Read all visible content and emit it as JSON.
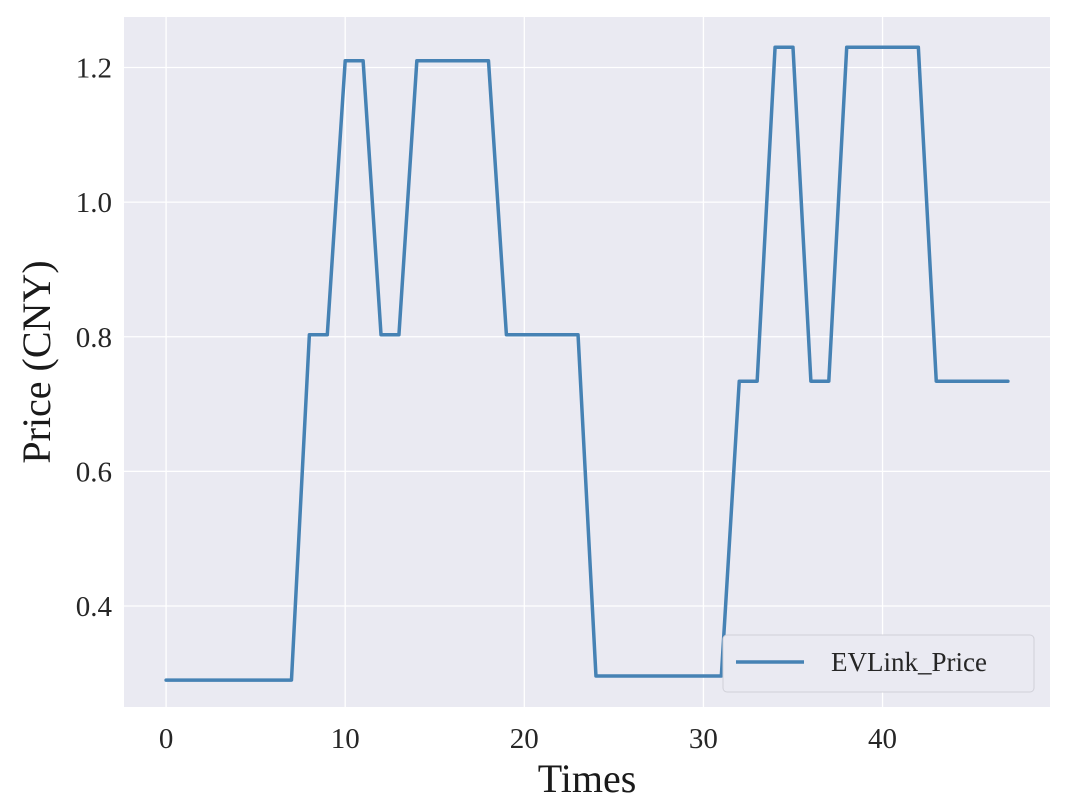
{
  "chart_data": {
    "type": "line",
    "title": "",
    "xlabel": "Times",
    "ylabel": "Price (CNY)",
    "xlim": [
      -2.35,
      49.35
    ],
    "ylim": [
      0.25,
      1.275
    ],
    "xticks": [
      0,
      10,
      20,
      30,
      40
    ],
    "xtick_labels": [
      "0",
      "10",
      "20",
      "30",
      "40"
    ],
    "yticks": [
      0.4,
      0.6,
      0.8,
      1.0,
      1.2
    ],
    "ytick_labels": [
      "0.4",
      "0.6",
      "0.8",
      "1.0",
      "1.2"
    ],
    "grid": true,
    "legend_position": "lower-right",
    "series": [
      {
        "name": "EVLink_Price",
        "color": "#4682b4",
        "x": [
          0,
          1,
          2,
          3,
          4,
          5,
          6,
          7,
          8,
          9,
          10,
          11,
          12,
          13,
          14,
          15,
          16,
          17,
          18,
          19,
          20,
          21,
          22,
          23,
          24,
          25,
          26,
          27,
          28,
          29,
          30,
          31,
          32,
          33,
          34,
          35,
          36,
          37,
          38,
          39,
          40,
          41,
          42,
          43,
          44,
          45,
          46,
          47
        ],
        "y": [
          0.29,
          0.29,
          0.29,
          0.29,
          0.29,
          0.29,
          0.29,
          0.29,
          0.803,
          0.803,
          1.21,
          1.21,
          0.803,
          0.803,
          1.21,
          1.21,
          1.21,
          1.21,
          1.21,
          0.803,
          0.803,
          0.803,
          0.803,
          0.803,
          0.296,
          0.296,
          0.296,
          0.296,
          0.296,
          0.296,
          0.296,
          0.296,
          0.734,
          0.734,
          1.23,
          1.23,
          0.734,
          0.734,
          1.23,
          1.23,
          1.23,
          1.23,
          1.23,
          0.734,
          0.734,
          0.734,
          0.734,
          0.734
        ]
      }
    ]
  }
}
